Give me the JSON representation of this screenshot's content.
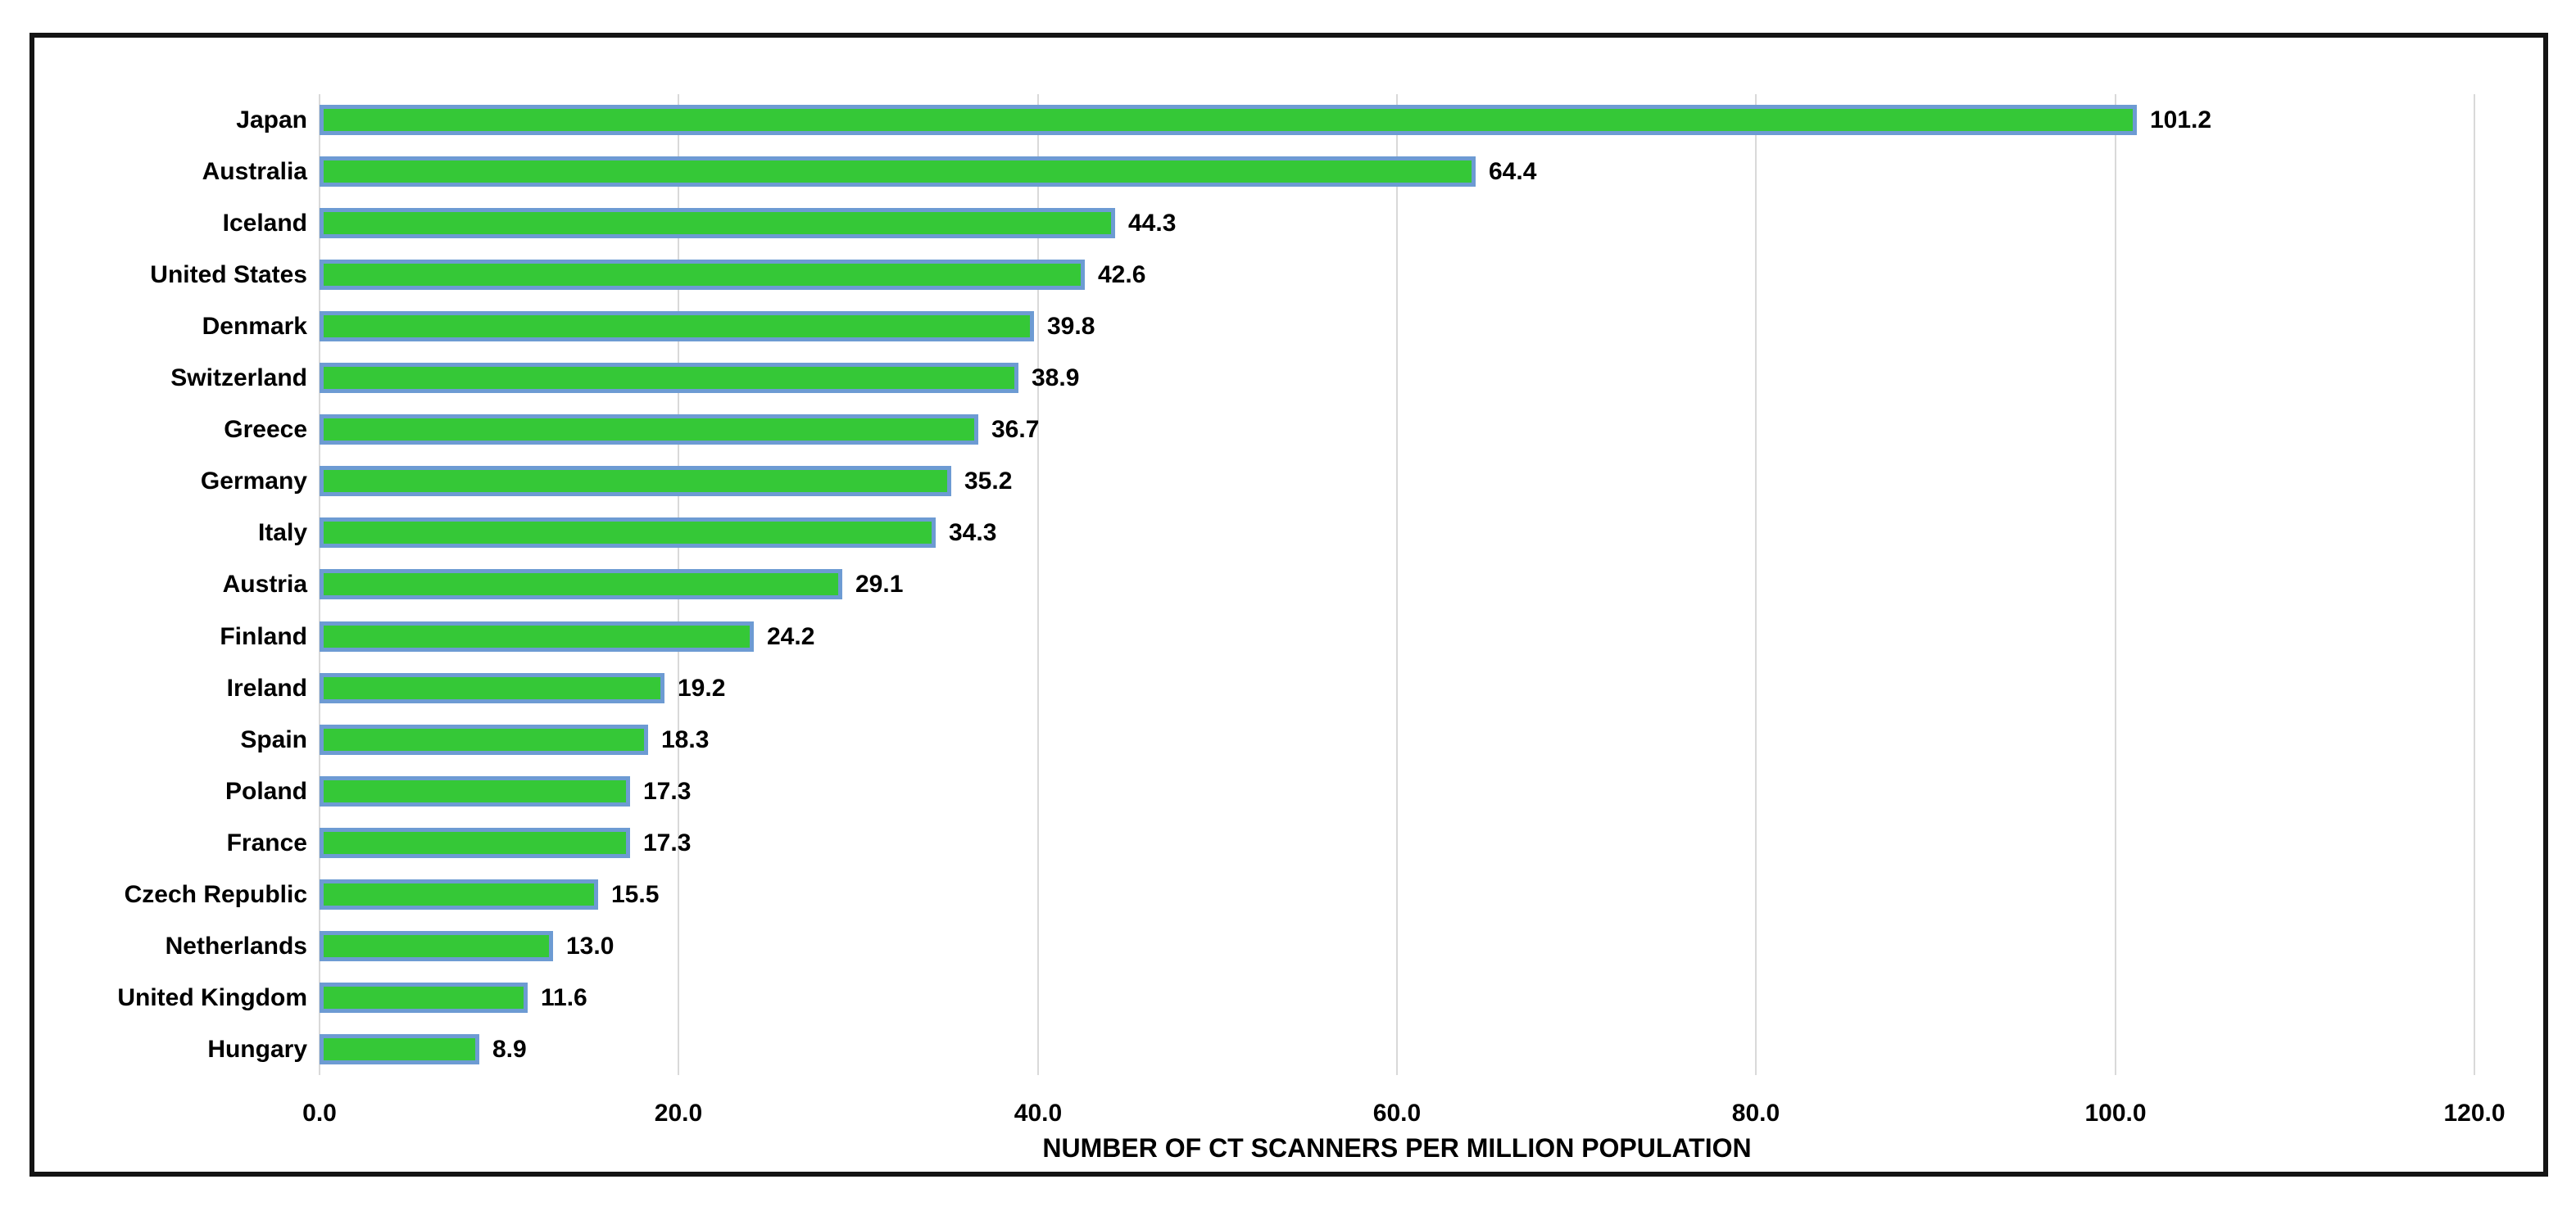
{
  "chart_data": {
    "type": "bar",
    "orientation": "horizontal",
    "title": "",
    "xlabel": "NUMBER OF CT SCANNERS PER MILLION POPULATION",
    "ylabel": "",
    "categories": [
      "Japan",
      "Australia",
      "Iceland",
      "United States",
      "Denmark",
      "Switzerland",
      "Greece",
      "Germany",
      "Italy",
      "Austria",
      "Finland",
      "Ireland",
      "Spain",
      "Poland",
      "France",
      "Czech Republic",
      "Netherlands",
      "United Kingdom",
      "Hungary"
    ],
    "values": [
      101.2,
      64.4,
      44.3,
      42.6,
      39.8,
      38.9,
      36.7,
      35.2,
      34.3,
      29.1,
      24.2,
      19.2,
      18.3,
      17.3,
      17.3,
      15.5,
      13.0,
      11.6,
      8.9
    ],
    "value_labels": [
      "101.2",
      "64.4",
      "44.3",
      "42.6",
      "39.8",
      "38.9",
      "36.7",
      "35.2",
      "34.3",
      "29.1",
      "24.2",
      "19.2",
      "18.3",
      "17.3",
      "17.3",
      "15.5",
      "13.0",
      "11.6",
      "8.9"
    ],
    "xlim": [
      0,
      120
    ],
    "xticks": [
      0,
      20,
      40,
      60,
      80,
      100,
      120
    ],
    "xtick_labels": [
      "0.0",
      "20.0",
      "40.0",
      "60.0",
      "80.0",
      "100.0",
      "120.0"
    ],
    "grid": "vertical-major",
    "legend": "none",
    "colors": {
      "bar_fill": "#35C837",
      "bar_border": "#6D9BD3",
      "gridline": "#D9D9D9",
      "text": "#000000",
      "frame_border": "#141414",
      "background": "#FFFFFF"
    }
  }
}
